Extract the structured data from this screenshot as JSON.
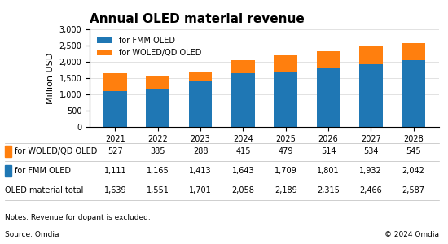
{
  "chart_data": {
    "type": "bar",
    "title": "Annual OLED material revenue",
    "ylabel": "Million USD",
    "categories": [
      "2021",
      "2022",
      "2023",
      "2024",
      "2025",
      "2026",
      "2027",
      "2028"
    ],
    "stacked": true,
    "series": [
      {
        "name": "for FMM OLED",
        "values": [
          1111,
          1165,
          1413,
          1643,
          1709,
          1801,
          1932,
          2042
        ],
        "value_labels": [
          "1,111",
          "1,165",
          "1,413",
          "1,643",
          "1,709",
          "1,801",
          "1,932",
          "2,042"
        ]
      },
      {
        "name": "for WOLED/QD OLED",
        "values": [
          527,
          385,
          288,
          415,
          479,
          514,
          534,
          545
        ]
      }
    ],
    "totals": {
      "name": "OLED material total",
      "values": [
        1639,
        1551,
        1701,
        2058,
        2189,
        2315,
        2466,
        2587
      ],
      "value_labels": [
        "1,639",
        "1,551",
        "1,701",
        "2,058",
        "2,189",
        "2,315",
        "2,466",
        "2,587"
      ]
    },
    "ylim": [
      0,
      3000
    ],
    "yticks": [
      0,
      500,
      {
        "value": 1000,
        "label": "1,000"
      },
      {
        "value": 1500,
        "label": "1,500"
      },
      {
        "value": 2000,
        "label": "2,000"
      },
      {
        "value": 2500,
        "label": "2,500"
      },
      {
        "value": 3000,
        "label": "3,000"
      }
    ],
    "grid": true,
    "legend": "upper left",
    "annotations": [
      "Notes: Revenue for dopant is excluded.",
      "Source: Omdia",
      "© 2024 Omdia"
    ]
  }
}
